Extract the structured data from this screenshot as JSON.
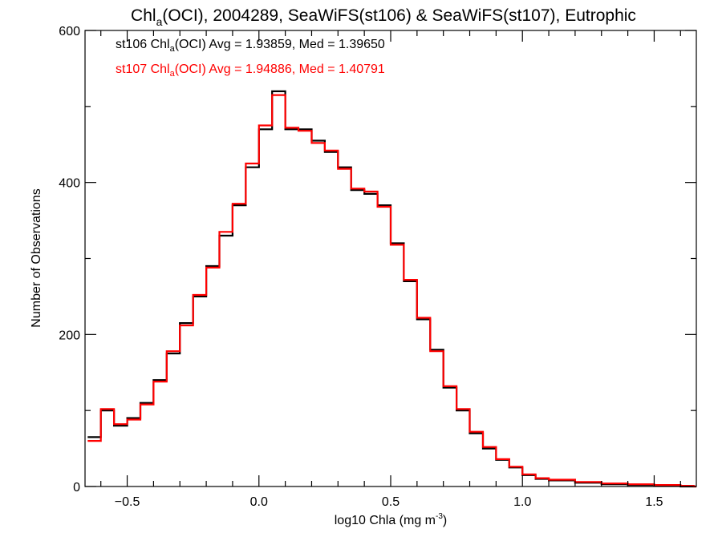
{
  "chart_data": {
    "type": "line",
    "title": {
      "pre": "Chl",
      "sub": "a",
      "post": "(OCI), 2004289, SeaWiFS(st106) & SeaWiFS(st107), Eutrophic"
    },
    "xlabel": {
      "pre": "log10 Chla (mg m",
      "sup": "-3",
      "post": ")"
    },
    "ylabel": "Number of Observations",
    "xlim": [
      -0.66,
      1.66
    ],
    "ylim": [
      0,
      600
    ],
    "xticks": [
      -0.5,
      0.0,
      0.5,
      1.0,
      1.5
    ],
    "xtick_labels": [
      "−0.5",
      "0.0",
      "0.5",
      "1.0",
      "1.5"
    ],
    "yticks": [
      0,
      200,
      400,
      600
    ],
    "ytick_labels": [
      "0",
      "200",
      "400",
      "600"
    ],
    "x_minor_step": 0.1,
    "y_minor_step": 100,
    "grid": false,
    "legend": [
      {
        "pre": "st106 Chl",
        "sub": "a",
        "post": "(OCI) Avg = 1.93859, Med = 1.39650",
        "color": "#000000"
      },
      {
        "pre": "st107 Chl",
        "sub": "a",
        "post": "(OCI) Avg = 1.94886, Med = 1.40791",
        "color": "#ff0000"
      }
    ],
    "legend_placement": "top-left",
    "series": [
      {
        "color": "#000000",
        "x": [
          -0.65,
          -0.6,
          -0.55,
          -0.5,
          -0.45,
          -0.4,
          -0.35,
          -0.3,
          -0.25,
          -0.2,
          -0.15,
          -0.1,
          -0.05,
          0.0,
          0.05,
          0.1,
          0.15,
          0.2,
          0.25,
          0.3,
          0.35,
          0.4,
          0.45,
          0.5,
          0.55,
          0.6,
          0.65,
          0.7,
          0.75,
          0.8,
          0.85,
          0.9,
          0.95,
          1.0,
          1.05,
          1.1,
          1.2,
          1.3,
          1.4,
          1.5,
          1.6,
          1.65
        ],
        "y": [
          65,
          100,
          80,
          90,
          110,
          140,
          175,
          215,
          250,
          290,
          330,
          370,
          420,
          470,
          520,
          470,
          470,
          455,
          440,
          420,
          390,
          385,
          370,
          320,
          270,
          220,
          180,
          130,
          100,
          70,
          50,
          35,
          25,
          15,
          10,
          8,
          5,
          3,
          2,
          1,
          0,
          0
        ]
      },
      {
        "color": "#ff0000",
        "x": [
          -0.65,
          -0.6,
          -0.55,
          -0.5,
          -0.45,
          -0.4,
          -0.35,
          -0.3,
          -0.25,
          -0.2,
          -0.15,
          -0.1,
          -0.05,
          0.0,
          0.05,
          0.1,
          0.15,
          0.2,
          0.25,
          0.3,
          0.35,
          0.4,
          0.45,
          0.5,
          0.55,
          0.6,
          0.65,
          0.7,
          0.75,
          0.8,
          0.85,
          0.9,
          0.95,
          1.0,
          1.05,
          1.1,
          1.2,
          1.3,
          1.4,
          1.5,
          1.6,
          1.65
        ],
        "y": [
          60,
          102,
          82,
          88,
          108,
          138,
          178,
          212,
          252,
          288,
          335,
          372,
          425,
          475,
          515,
          472,
          468,
          452,
          442,
          418,
          392,
          388,
          368,
          318,
          272,
          222,
          178,
          132,
          102,
          72,
          52,
          36,
          26,
          16,
          11,
          9,
          6,
          4,
          3,
          2,
          1,
          0
        ]
      }
    ]
  }
}
